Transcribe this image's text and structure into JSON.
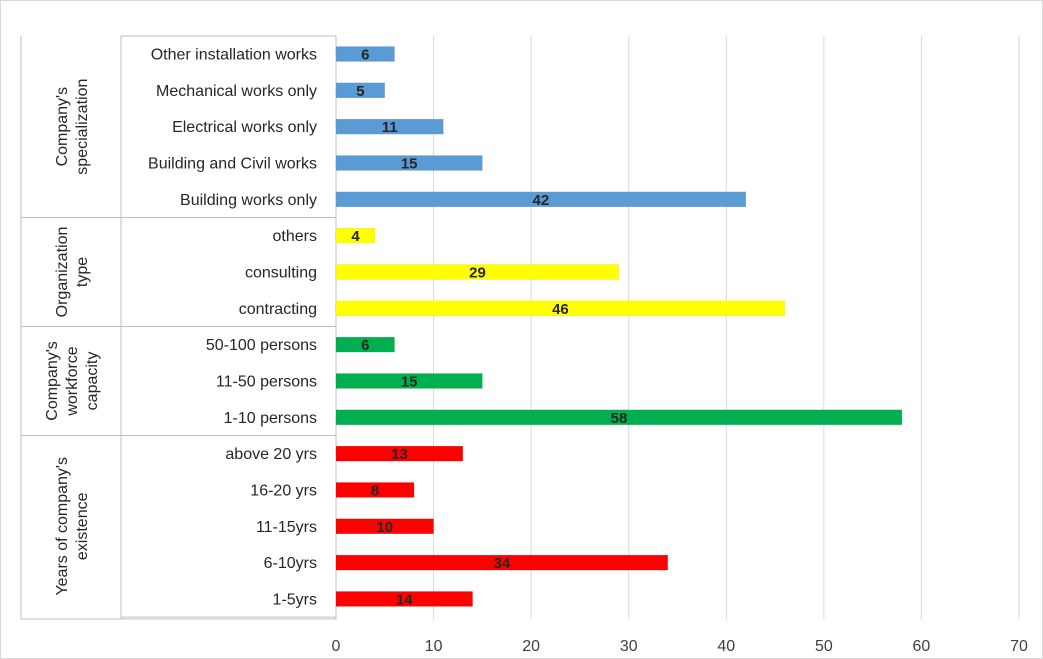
{
  "chart_data": {
    "type": "bar",
    "orientation": "horizontal",
    "xlim": [
      0,
      70
    ],
    "x_ticks": [
      "0",
      "10",
      "20",
      "30",
      "40",
      "50",
      "60",
      "70"
    ],
    "grid": "vertical",
    "data_labels": true,
    "groups": [
      {
        "label_lines": [
          "Company's",
          "specialization"
        ],
        "color": "#5B9BD5",
        "bars": [
          {
            "category": "Other installation works",
            "value": 6
          },
          {
            "category": "Mechanical works only",
            "value": 5
          },
          {
            "category": "Electrical works only",
            "value": 11
          },
          {
            "category": "Building and Civil works",
            "value": 15
          },
          {
            "category": "Building works only",
            "value": 42
          }
        ]
      },
      {
        "label_lines": [
          "Organization",
          "type"
        ],
        "color": "#FFFF00",
        "bars": [
          {
            "category": "others",
            "value": 4
          },
          {
            "category": "consulting",
            "value": 29
          },
          {
            "category": "contracting",
            "value": 46
          }
        ]
      },
      {
        "label_lines": [
          "Company's",
          "workforce",
          "capacity"
        ],
        "color": "#00B050",
        "bars": [
          {
            "category": "50-100 persons",
            "value": 6
          },
          {
            "category": "11-50 persons",
            "value": 15
          },
          {
            "category": "1-10 persons",
            "value": 58
          }
        ]
      },
      {
        "label_lines": [
          "Years of company's",
          "existence"
        ],
        "color": "#FF0000",
        "bars": [
          {
            "category": "above 20 yrs",
            "value": 13
          },
          {
            "category": "16-20 yrs",
            "value": 8
          },
          {
            "category": "11-15yrs",
            "value": 10
          },
          {
            "category": "6-10yrs",
            "value": 34
          },
          {
            "category": "1-5yrs",
            "value": 14
          }
        ]
      }
    ]
  }
}
